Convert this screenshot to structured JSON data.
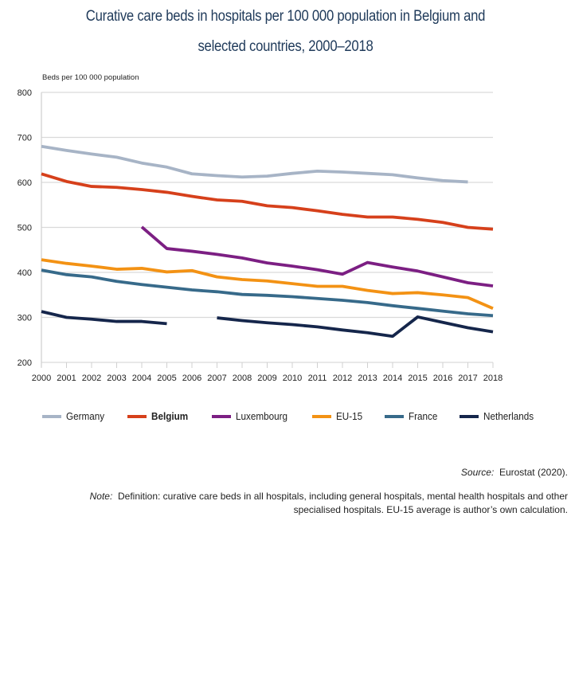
{
  "title_line1": "Curative care beds in hospitals per 100 000 population in Belgium and",
  "title_line2": "selected countries, 2000–2018",
  "source_label": "Source:",
  "source_text": "Eurostat (2020).",
  "note_label": "Note:",
  "note_text": "Definition: curative care beds in all hospitals, including general hospitals, mental health hospitals and other specialised hospitals. EU-15 average is author’s own calculation.",
  "chart_data": {
    "type": "line",
    "title": "Curative care beds in hospitals per 100 000 population in Belgium and selected countries, 2000–2018",
    "xlabel": "",
    "ylabel": "Beds per 100 000 population",
    "ylim": [
      200,
      800
    ],
    "yticks": [
      200,
      300,
      400,
      500,
      600,
      700,
      800
    ],
    "grid": true,
    "legend_position": "bottom",
    "x": [
      2000,
      2001,
      2002,
      2003,
      2004,
      2005,
      2006,
      2007,
      2008,
      2009,
      2010,
      2011,
      2012,
      2013,
      2014,
      2015,
      2016,
      2017,
      2018
    ],
    "series": [
      {
        "name": "Germany",
        "color": "#a7b4c6",
        "bold": false,
        "values": [
          680,
          671,
          663,
          656,
          643,
          634,
          619,
          615,
          612,
          614,
          620,
          625,
          623,
          620,
          617,
          610,
          604,
          601,
          null
        ]
      },
      {
        "name": "Belgium",
        "color": "#d6401b",
        "bold": true,
        "values": [
          619,
          602,
          591,
          589,
          584,
          578,
          569,
          561,
          558,
          548,
          544,
          537,
          529,
          523,
          523,
          518,
          511,
          500,
          496
        ]
      },
      {
        "name": "Luxembourg",
        "color": "#7c1f83",
        "bold": false,
        "values": [
          null,
          null,
          null,
          null,
          501,
          453,
          447,
          440,
          432,
          421,
          414,
          406,
          396,
          422,
          412,
          403,
          390,
          377,
          370
        ]
      },
      {
        "name": "EU-15",
        "color": "#f39214",
        "bold": false,
        "values": [
          428,
          420,
          414,
          407,
          409,
          401,
          404,
          390,
          384,
          381,
          375,
          369,
          369,
          360,
          353,
          355,
          350,
          344,
          320
        ]
      },
      {
        "name": "France",
        "color": "#376a8a",
        "bold": false,
        "values": [
          405,
          395,
          390,
          380,
          373,
          367,
          361,
          357,
          351,
          349,
          346,
          342,
          338,
          333,
          326,
          320,
          314,
          308,
          304
        ]
      },
      {
        "name": "Netherlands",
        "color": "#15264b",
        "bold": false,
        "values": [
          313,
          300,
          296,
          291,
          291,
          286,
          null,
          299,
          293,
          288,
          284,
          279,
          272,
          266,
          258,
          301,
          289,
          277,
          268
        ]
      }
    ]
  }
}
